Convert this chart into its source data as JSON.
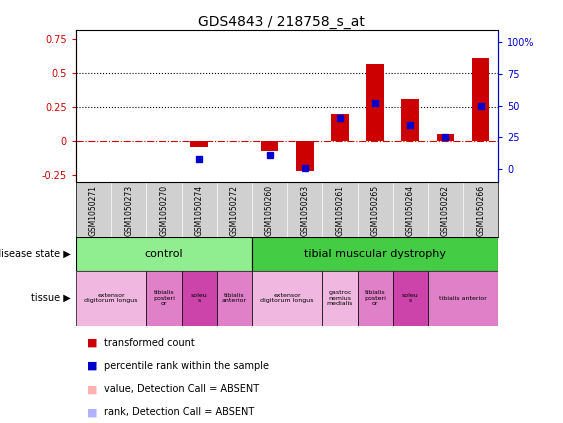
{
  "title": "GDS4843 / 218758_s_at",
  "samples": [
    "GSM1050271",
    "GSM1050273",
    "GSM1050270",
    "GSM1050274",
    "GSM1050272",
    "GSM1050260",
    "GSM1050263",
    "GSM1050261",
    "GSM1050265",
    "GSM1050264",
    "GSM1050262",
    "GSM1050266"
  ],
  "red_values": [
    0.0,
    0.0,
    0.0,
    -0.04,
    0.0,
    -0.07,
    -0.22,
    0.2,
    0.57,
    0.31,
    0.05,
    0.61
  ],
  "blue_values": [
    null,
    null,
    null,
    0.08,
    null,
    0.11,
    0.01,
    0.4,
    0.52,
    0.35,
    0.25,
    0.5
  ],
  "ylim_left": [
    -0.3,
    0.82
  ],
  "ylim_right": [
    -10,
    110
  ],
  "yticks_left": [
    -0.25,
    0.0,
    0.25,
    0.5,
    0.75
  ],
  "yticks_right": [
    0,
    25,
    50,
    75,
    100
  ],
  "ytick_labels_left": [
    "-0.25",
    "0",
    "0.25",
    "0.5",
    "0.75"
  ],
  "ytick_labels_right": [
    "0",
    "25",
    "50",
    "75",
    "100%"
  ],
  "hlines_dotted": [
    0.25,
    0.5
  ],
  "hline_dashdot": 0.0,
  "red_color": "#cc0000",
  "blue_color": "#0000cc",
  "bar_width": 0.5,
  "control_color": "#90ee90",
  "dystrophy_color": "#44cc44",
  "label_area_color": "#d0d0d0",
  "tissue_groups": [
    {
      "label": "extensor\ndigitorum longus",
      "cols": [
        0,
        1
      ],
      "color": "#f0b8e0"
    },
    {
      "label": "tibialis\nposteri\nor",
      "cols": [
        2
      ],
      "color": "#e080c8"
    },
    {
      "label": "soleu\ns",
      "cols": [
        3
      ],
      "color": "#cc44aa"
    },
    {
      "label": "tibialis\nanterior",
      "cols": [
        4
      ],
      "color": "#e080c8"
    },
    {
      "label": "extensor\ndigitorum longus",
      "cols": [
        5,
        6
      ],
      "color": "#f0b8e0"
    },
    {
      "label": "gastroc\nnemius\nmedialis",
      "cols": [
        7
      ],
      "color": "#f0b8e0"
    },
    {
      "label": "tibialis\nposteri\nor",
      "cols": [
        8
      ],
      "color": "#e080c8"
    },
    {
      "label": "soleu\ns",
      "cols": [
        9
      ],
      "color": "#cc44aa"
    },
    {
      "label": "tibialis anterior",
      "cols": [
        10,
        11
      ],
      "color": "#e080c8"
    }
  ],
  "legend_items": [
    {
      "color": "#cc0000",
      "label": "transformed count"
    },
    {
      "color": "#0000cc",
      "label": "percentile rank within the sample"
    },
    {
      "color": "#ffb0b0",
      "label": "value, Detection Call = ABSENT"
    },
    {
      "color": "#b0b0ff",
      "label": "rank, Detection Call = ABSENT"
    }
  ]
}
